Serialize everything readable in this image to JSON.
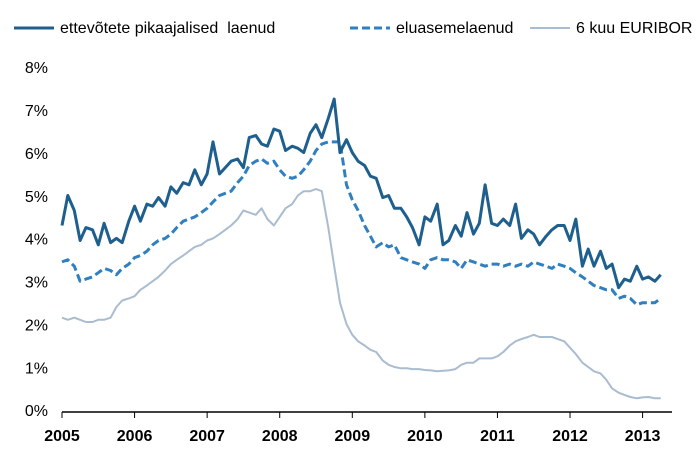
{
  "chart_data": {
    "type": "line",
    "x": [
      2005,
      2005.08,
      2005.17,
      2005.25,
      2005.33,
      2005.42,
      2005.5,
      2005.58,
      2005.67,
      2005.75,
      2005.83,
      2005.92,
      2006,
      2006.08,
      2006.17,
      2006.25,
      2006.33,
      2006.42,
      2006.5,
      2006.58,
      2006.67,
      2006.75,
      2006.83,
      2006.92,
      2007,
      2007.08,
      2007.17,
      2007.25,
      2007.33,
      2007.42,
      2007.5,
      2007.58,
      2007.67,
      2007.75,
      2007.83,
      2007.92,
      2008,
      2008.08,
      2008.17,
      2008.25,
      2008.33,
      2008.42,
      2008.5,
      2008.58,
      2008.67,
      2008.75,
      2008.83,
      2008.92,
      2009,
      2009.08,
      2009.17,
      2009.25,
      2009.33,
      2009.42,
      2009.5,
      2009.58,
      2009.67,
      2009.75,
      2009.83,
      2009.92,
      2010,
      2010.08,
      2010.17,
      2010.25,
      2010.33,
      2010.42,
      2010.5,
      2010.58,
      2010.67,
      2010.75,
      2010.83,
      2010.92,
      2011,
      2011.08,
      2011.17,
      2011.25,
      2011.33,
      2011.42,
      2011.5,
      2011.58,
      2011.67,
      2011.75,
      2011.83,
      2011.92,
      2012,
      2012.08,
      2012.17,
      2012.25,
      2012.33,
      2012.42,
      2012.5,
      2012.58,
      2012.67,
      2012.75,
      2012.83,
      2012.92,
      2013,
      2013.08,
      2013.17,
      2013.25
    ],
    "series": [
      {
        "name": "ettevõtete pikaajalised  laenud",
        "color": "#1f5f8e",
        "dash": "solid",
        "width": 3,
        "values": [
          4.35,
          5.05,
          4.7,
          4.0,
          4.3,
          4.25,
          3.9,
          4.4,
          3.95,
          4.05,
          3.95,
          4.45,
          4.8,
          4.45,
          4.85,
          4.8,
          5.0,
          4.8,
          5.25,
          5.1,
          5.35,
          5.3,
          5.65,
          5.3,
          5.55,
          6.3,
          5.55,
          5.7,
          5.85,
          5.9,
          5.7,
          6.4,
          6.45,
          6.25,
          6.2,
          6.6,
          6.55,
          6.1,
          6.2,
          6.15,
          6.05,
          6.5,
          6.7,
          6.4,
          6.85,
          7.3,
          6.05,
          6.35,
          6.05,
          5.85,
          5.75,
          5.5,
          5.45,
          5.0,
          5.05,
          4.75,
          4.75,
          4.55,
          4.3,
          3.9,
          4.55,
          4.45,
          4.85,
          3.9,
          4.0,
          4.35,
          4.1,
          4.65,
          4.15,
          4.4,
          5.3,
          4.4,
          4.35,
          4.5,
          4.35,
          4.85,
          4.05,
          4.25,
          4.15,
          3.9,
          4.1,
          4.25,
          4.35,
          4.35,
          4.0,
          4.5,
          3.4,
          3.8,
          3.4,
          3.75,
          3.35,
          3.45,
          2.9,
          3.1,
          3.05,
          3.4,
          3.1,
          3.15,
          3.05,
          3.2
        ]
      },
      {
        "name": "eluasemelaenud",
        "color": "#2f7fc1",
        "dash": "dashed",
        "width": 3,
        "values": [
          3.5,
          3.55,
          3.4,
          3.05,
          3.1,
          3.15,
          3.25,
          3.35,
          3.3,
          3.2,
          3.35,
          3.45,
          3.6,
          3.65,
          3.75,
          3.9,
          4.0,
          4.05,
          4.15,
          4.3,
          4.45,
          4.5,
          4.55,
          4.65,
          4.75,
          4.9,
          5.05,
          5.1,
          5.15,
          5.35,
          5.5,
          5.75,
          5.85,
          5.9,
          5.8,
          5.85,
          5.65,
          5.5,
          5.45,
          5.5,
          5.65,
          5.85,
          6.1,
          6.25,
          6.3,
          6.3,
          6.3,
          5.3,
          4.95,
          4.7,
          4.35,
          4.1,
          3.85,
          3.95,
          3.85,
          3.9,
          3.6,
          3.55,
          3.5,
          3.45,
          3.35,
          3.55,
          3.6,
          3.55,
          3.55,
          3.5,
          3.35,
          3.55,
          3.5,
          3.45,
          3.4,
          3.45,
          3.45,
          3.4,
          3.45,
          3.4,
          3.45,
          3.4,
          3.5,
          3.45,
          3.4,
          3.35,
          3.45,
          3.4,
          3.35,
          3.25,
          3.15,
          3.05,
          2.95,
          2.9,
          2.85,
          2.85,
          2.65,
          2.7,
          2.65,
          2.5,
          2.55,
          2.55,
          2.55,
          2.65
        ]
      },
      {
        "name": "6 kuu EURIBOR",
        "color": "#a9bcd0",
        "dash": "solid",
        "width": 2,
        "values": [
          2.2,
          2.15,
          2.2,
          2.15,
          2.1,
          2.1,
          2.15,
          2.15,
          2.2,
          2.45,
          2.6,
          2.65,
          2.7,
          2.85,
          2.95,
          3.05,
          3.15,
          3.3,
          3.45,
          3.55,
          3.65,
          3.75,
          3.85,
          3.9,
          4.0,
          4.05,
          4.15,
          4.25,
          4.35,
          4.5,
          4.7,
          4.65,
          4.6,
          4.75,
          4.5,
          4.35,
          4.55,
          4.75,
          4.85,
          5.05,
          5.15,
          5.15,
          5.2,
          5.15,
          4.3,
          3.4,
          2.55,
          2.05,
          1.8,
          1.65,
          1.55,
          1.45,
          1.4,
          1.2,
          1.1,
          1.05,
          1.02,
          1.02,
          1.0,
          1.0,
          0.98,
          0.97,
          0.95,
          0.96,
          0.97,
          1.0,
          1.1,
          1.15,
          1.15,
          1.25,
          1.25,
          1.25,
          1.3,
          1.4,
          1.55,
          1.65,
          1.7,
          1.75,
          1.8,
          1.75,
          1.75,
          1.75,
          1.7,
          1.65,
          1.5,
          1.35,
          1.15,
          1.05,
          0.95,
          0.9,
          0.75,
          0.55,
          0.45,
          0.4,
          0.35,
          0.32,
          0.34,
          0.35,
          0.32,
          0.32
        ]
      }
    ],
    "xlim": [
      2005,
      2013.35
    ],
    "xticks": [
      2005,
      2006,
      2007,
      2008,
      2009,
      2010,
      2011,
      2012,
      2013
    ],
    "ylim": [
      0,
      8
    ],
    "yticks": [
      {
        "value": 0,
        "label": "0%"
      },
      {
        "value": 1,
        "label": "1%"
      },
      {
        "value": 2,
        "label": "2%"
      },
      {
        "value": 3,
        "label": "3%"
      },
      {
        "value": 4,
        "label": "4%"
      },
      {
        "value": 5,
        "label": "5%"
      },
      {
        "value": 6,
        "label": "6%"
      },
      {
        "value": 7,
        "label": "7%"
      },
      {
        "value": 8,
        "label": "8%"
      }
    ],
    "grid": false,
    "legend": "top"
  }
}
